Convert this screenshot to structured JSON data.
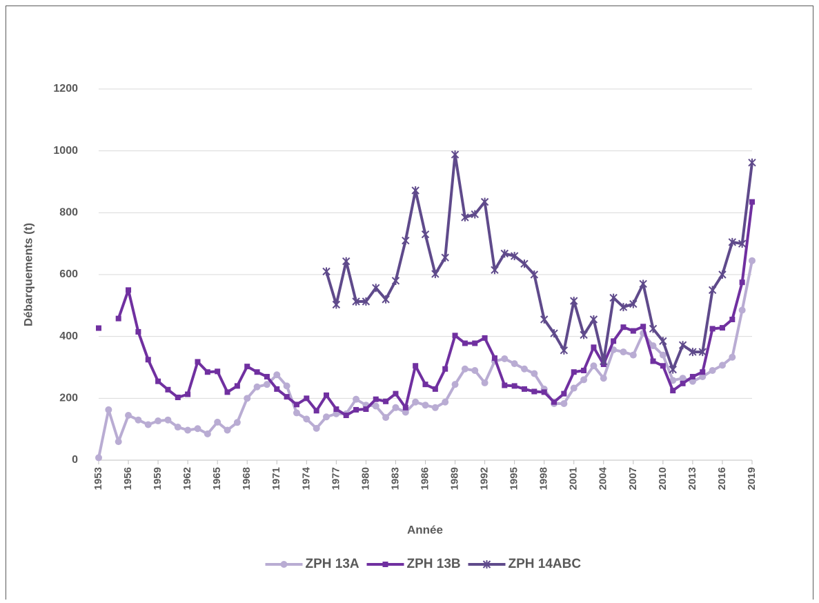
{
  "chart_data": {
    "type": "line",
    "x_label": "Année",
    "y_label": "Débarquements (t)",
    "x": [
      1953,
      1954,
      1955,
      1956,
      1957,
      1958,
      1959,
      1960,
      1961,
      1962,
      1963,
      1964,
      1965,
      1966,
      1967,
      1968,
      1969,
      1970,
      1971,
      1972,
      1973,
      1974,
      1975,
      1976,
      1977,
      1978,
      1979,
      1980,
      1981,
      1982,
      1983,
      1984,
      1985,
      1986,
      1987,
      1988,
      1989,
      1990,
      1991,
      1992,
      1993,
      1994,
      1995,
      1996,
      1997,
      1998,
      1999,
      2000,
      2001,
      2002,
      2003,
      2004,
      2005,
      2006,
      2007,
      2008,
      2009,
      2010,
      2011,
      2012,
      2013,
      2014,
      2015,
      2016,
      2017,
      2018,
      2019
    ],
    "xlim": [
      1953,
      2019
    ],
    "xticks": [
      1953,
      1956,
      1959,
      1962,
      1965,
      1968,
      1971,
      1974,
      1977,
      1980,
      1983,
      1986,
      1989,
      1992,
      1995,
      1998,
      2001,
      2004,
      2007,
      2010,
      2013,
      2016,
      2019
    ],
    "ylim": [
      0,
      1200
    ],
    "yticks": [
      0,
      200,
      400,
      600,
      800,
      1000,
      1200
    ],
    "grid": true,
    "legend": "bottom",
    "series": [
      {
        "name": "ZPH 13A",
        "color": "#b9acd3",
        "marker": "circle",
        "values": [
          8,
          163,
          60,
          145,
          130,
          115,
          127,
          130,
          107,
          97,
          102,
          85,
          123,
          97,
          122,
          200,
          237,
          245,
          276,
          240,
          153,
          133,
          103,
          140,
          150,
          150,
          197,
          178,
          175,
          138,
          170,
          155,
          188,
          178,
          170,
          188,
          245,
          295,
          290,
          250,
          320,
          328,
          312,
          295,
          280,
          230,
          183,
          183,
          233,
          260,
          305,
          265,
          357,
          350,
          340,
          410,
          370,
          340,
          258,
          265,
          255,
          270,
          290,
          307,
          333,
          485,
          645
        ]
      },
      {
        "name": "ZPH 13B",
        "color": "#7030a0",
        "marker": "square",
        "values": [
          427,
          null,
          458,
          550,
          415,
          325,
          255,
          228,
          203,
          213,
          318,
          285,
          287,
          220,
          240,
          303,
          285,
          270,
          230,
          205,
          180,
          200,
          160,
          210,
          165,
          145,
          163,
          165,
          197,
          190,
          215,
          170,
          305,
          245,
          230,
          295,
          403,
          378,
          378,
          395,
          330,
          242,
          240,
          230,
          222,
          220,
          188,
          215,
          285,
          290,
          365,
          310,
          385,
          430,
          418,
          432,
          320,
          305,
          225,
          248,
          270,
          285,
          425,
          428,
          455,
          575,
          835
        ]
      },
      {
        "name": "ZPH 14ABC",
        "color": "#5f4a8b",
        "marker": "x",
        "values": [
          null,
          null,
          null,
          null,
          null,
          null,
          null,
          null,
          null,
          null,
          null,
          null,
          null,
          null,
          null,
          null,
          null,
          null,
          null,
          null,
          null,
          null,
          null,
          610,
          503,
          643,
          513,
          513,
          557,
          520,
          580,
          710,
          872,
          730,
          602,
          655,
          988,
          785,
          795,
          835,
          615,
          668,
          660,
          635,
          600,
          455,
          410,
          355,
          515,
          405,
          455,
          320,
          525,
          495,
          505,
          570,
          425,
          385,
          293,
          372,
          350,
          350,
          550,
          600,
          705,
          700,
          962
        ]
      }
    ]
  }
}
